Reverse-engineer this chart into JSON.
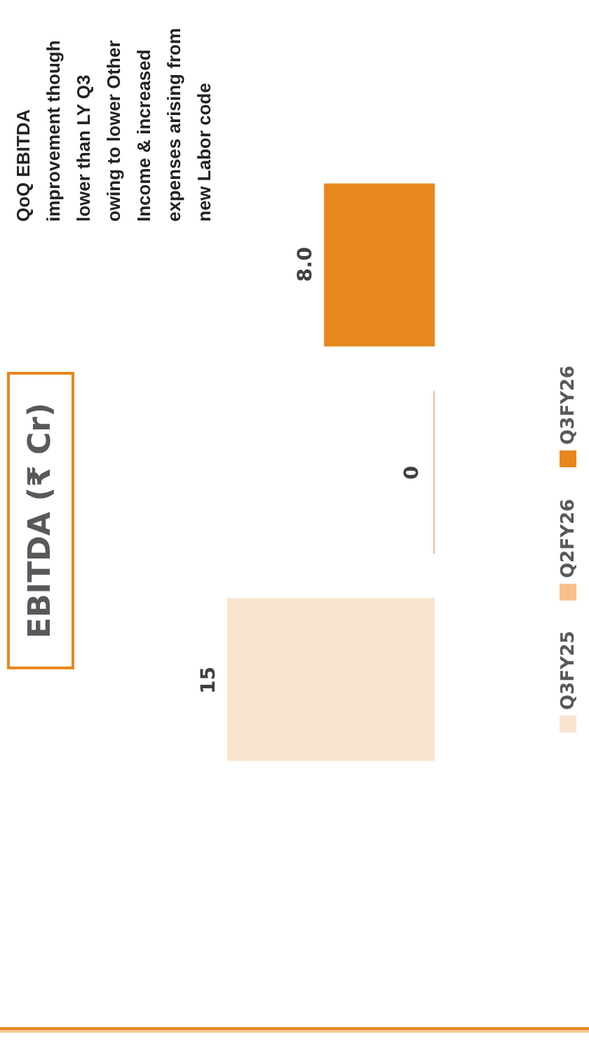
{
  "chart_data": {
    "type": "bar",
    "orientation": "horizontal",
    "title": "EBITDA (₹ Cr)",
    "categories": [
      null
    ],
    "series": [
      {
        "name": "Q3FY26",
        "color": "#e8871e",
        "values": [
          8.0
        ],
        "value_labels": [
          "8.0"
        ]
      },
      {
        "name": "Q2FY26",
        "color": "#f8bf8d",
        "values": [
          0
        ],
        "value_labels": [
          "0"
        ]
      },
      {
        "name": "Q3FY25",
        "color": "#f8e5d0",
        "values": [
          15
        ],
        "value_labels": [
          "15"
        ]
      }
    ],
    "tick_labels": false,
    "legend": "right",
    "annotations": [
      "QoQ EBITDA\nimprovement though\nlower than LY Q3\nowing to lower Other\nIncome & increased\nexpenses arising from\nnew Labor code"
    ]
  }
}
